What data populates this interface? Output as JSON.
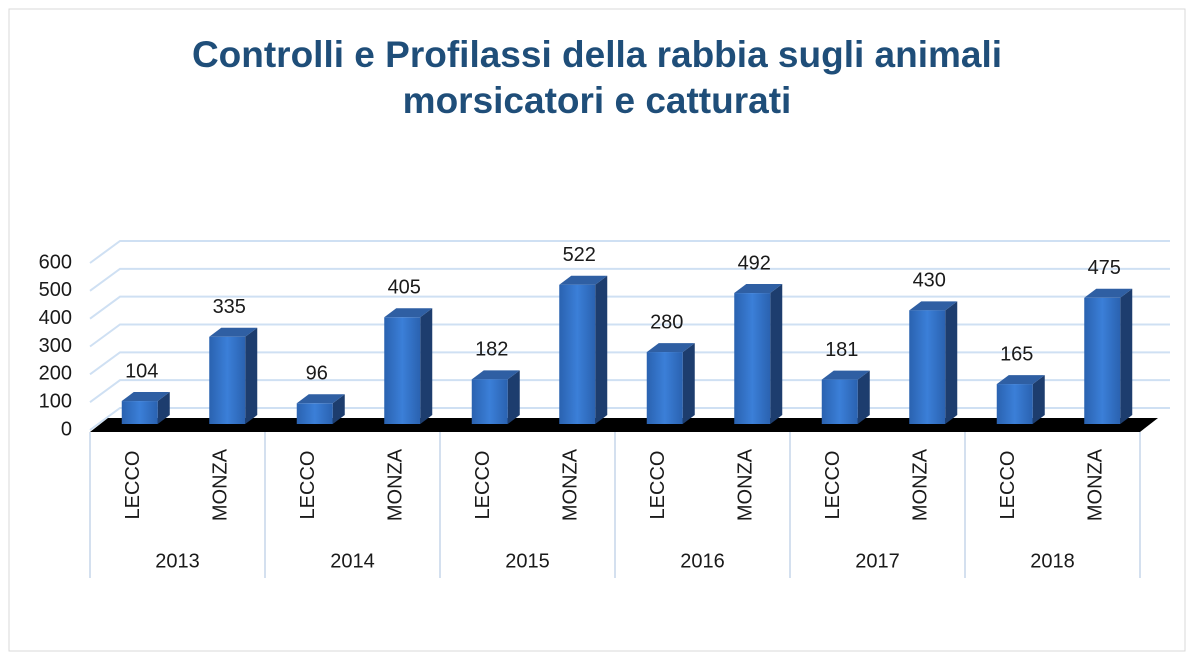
{
  "chart_data": {
    "type": "bar3d",
    "title": "Controlli e Profilassi della rabbia sugli animali morsicatori e catturati",
    "categories": [
      "LECCO",
      "MONZA",
      "LECCO",
      "MONZA",
      "LECCO",
      "MONZA",
      "LECCO",
      "MONZA",
      "LECCO",
      "MONZA",
      "LECCO",
      "MONZA"
    ],
    "groups": [
      "2013",
      "2014",
      "2015",
      "2016",
      "2017",
      "2018"
    ],
    "values": [
      104,
      335,
      96,
      405,
      182,
      522,
      280,
      492,
      181,
      430,
      165,
      475
    ],
    "color": "#2e6fc4",
    "ylim": [
      0,
      600
    ],
    "yticks": [
      0,
      100,
      200,
      300,
      400,
      500,
      600
    ],
    "grid": true
  }
}
